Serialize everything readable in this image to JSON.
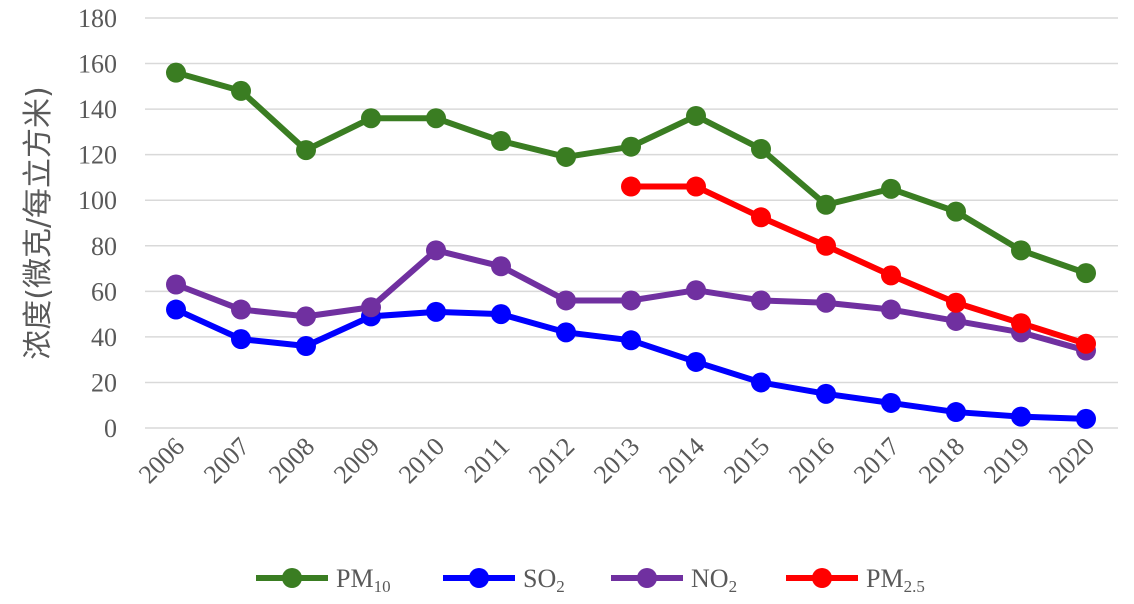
{
  "chart_data": {
    "type": "line",
    "title": "",
    "xlabel": "",
    "ylabel": "浓度(微克/每立方米)",
    "ylim": [
      0,
      180
    ],
    "yticks": [
      0,
      20,
      40,
      60,
      80,
      100,
      120,
      140,
      160,
      180
    ],
    "grid": true,
    "legend": "bottom",
    "categories": [
      "2006",
      "2007",
      "2008",
      "2009",
      "2010",
      "2011",
      "2012",
      "2013",
      "2014",
      "2015",
      "2016",
      "2017",
      "2018",
      "2019",
      "2020"
    ],
    "series": [
      {
        "name": "PM10",
        "label_main": "PM",
        "label_sub": "10",
        "color": "#3a7d22",
        "values": [
          156,
          148,
          122,
          136,
          136,
          126,
          119,
          123.5,
          137,
          122.5,
          98,
          105,
          95,
          78,
          68
        ]
      },
      {
        "name": "SO2",
        "label_main": "SO",
        "label_sub": "2",
        "color": "#0000ff",
        "values": [
          52,
          39,
          36,
          49,
          51,
          50,
          42,
          38.5,
          29,
          20,
          15,
          11,
          7,
          5,
          4
        ]
      },
      {
        "name": "NO2",
        "label_main": "NO",
        "label_sub": "2",
        "color": "#7030a0",
        "values": [
          63,
          52,
          49,
          53,
          78,
          71,
          56,
          56,
          60.5,
          56,
          55,
          52,
          47,
          42,
          34
        ]
      },
      {
        "name": "PM2.5",
        "label_main": "PM",
        "label_sub": "2.5",
        "color": "#ff0000",
        "values": [
          null,
          null,
          null,
          null,
          null,
          null,
          null,
          106,
          106,
          92.5,
          80,
          67,
          55,
          46,
          37
        ]
      }
    ]
  }
}
